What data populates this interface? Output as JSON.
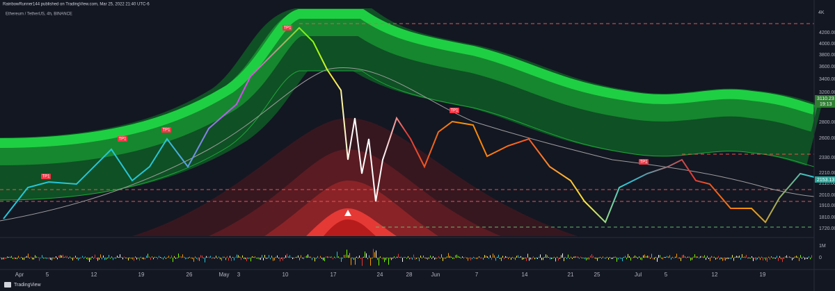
{
  "header": {
    "publisher": "RainbowRunner144 published on TradingView.com, Mar 25, 2022 21:40 UTC-6",
    "symbol": "Ethereum / TetherUS, 4h, BINANCE"
  },
  "price_axis": {
    "unit_label": "4K",
    "labels": [
      "4200.00",
      "4000.00",
      "3800.00",
      "3600.00",
      "3400.00",
      "3200.00",
      "2800.00",
      "2600.00",
      "2330.00",
      "2210.00",
      "2110.00",
      "2010.00",
      "1910.00",
      "1810.00",
      "1720.00"
    ]
  },
  "price_tags": [
    {
      "price": "3110.23",
      "countdown": "19:13"
    },
    {
      "price": "2153.13"
    }
  ],
  "volume_axis": [
    "1M",
    "0"
  ],
  "date_axis": [
    "Apr",
    "5",
    "12",
    "19",
    "26",
    "May",
    "3",
    "10",
    "17",
    "24",
    "28",
    "Jun",
    "7",
    "14",
    "21",
    "25",
    "Jul",
    "5",
    "12",
    "19"
  ],
  "signals": [
    "TP1",
    "TP1",
    "TP1",
    "TP1",
    "TP1",
    "TP1"
  ],
  "logo": "TradingView"
}
